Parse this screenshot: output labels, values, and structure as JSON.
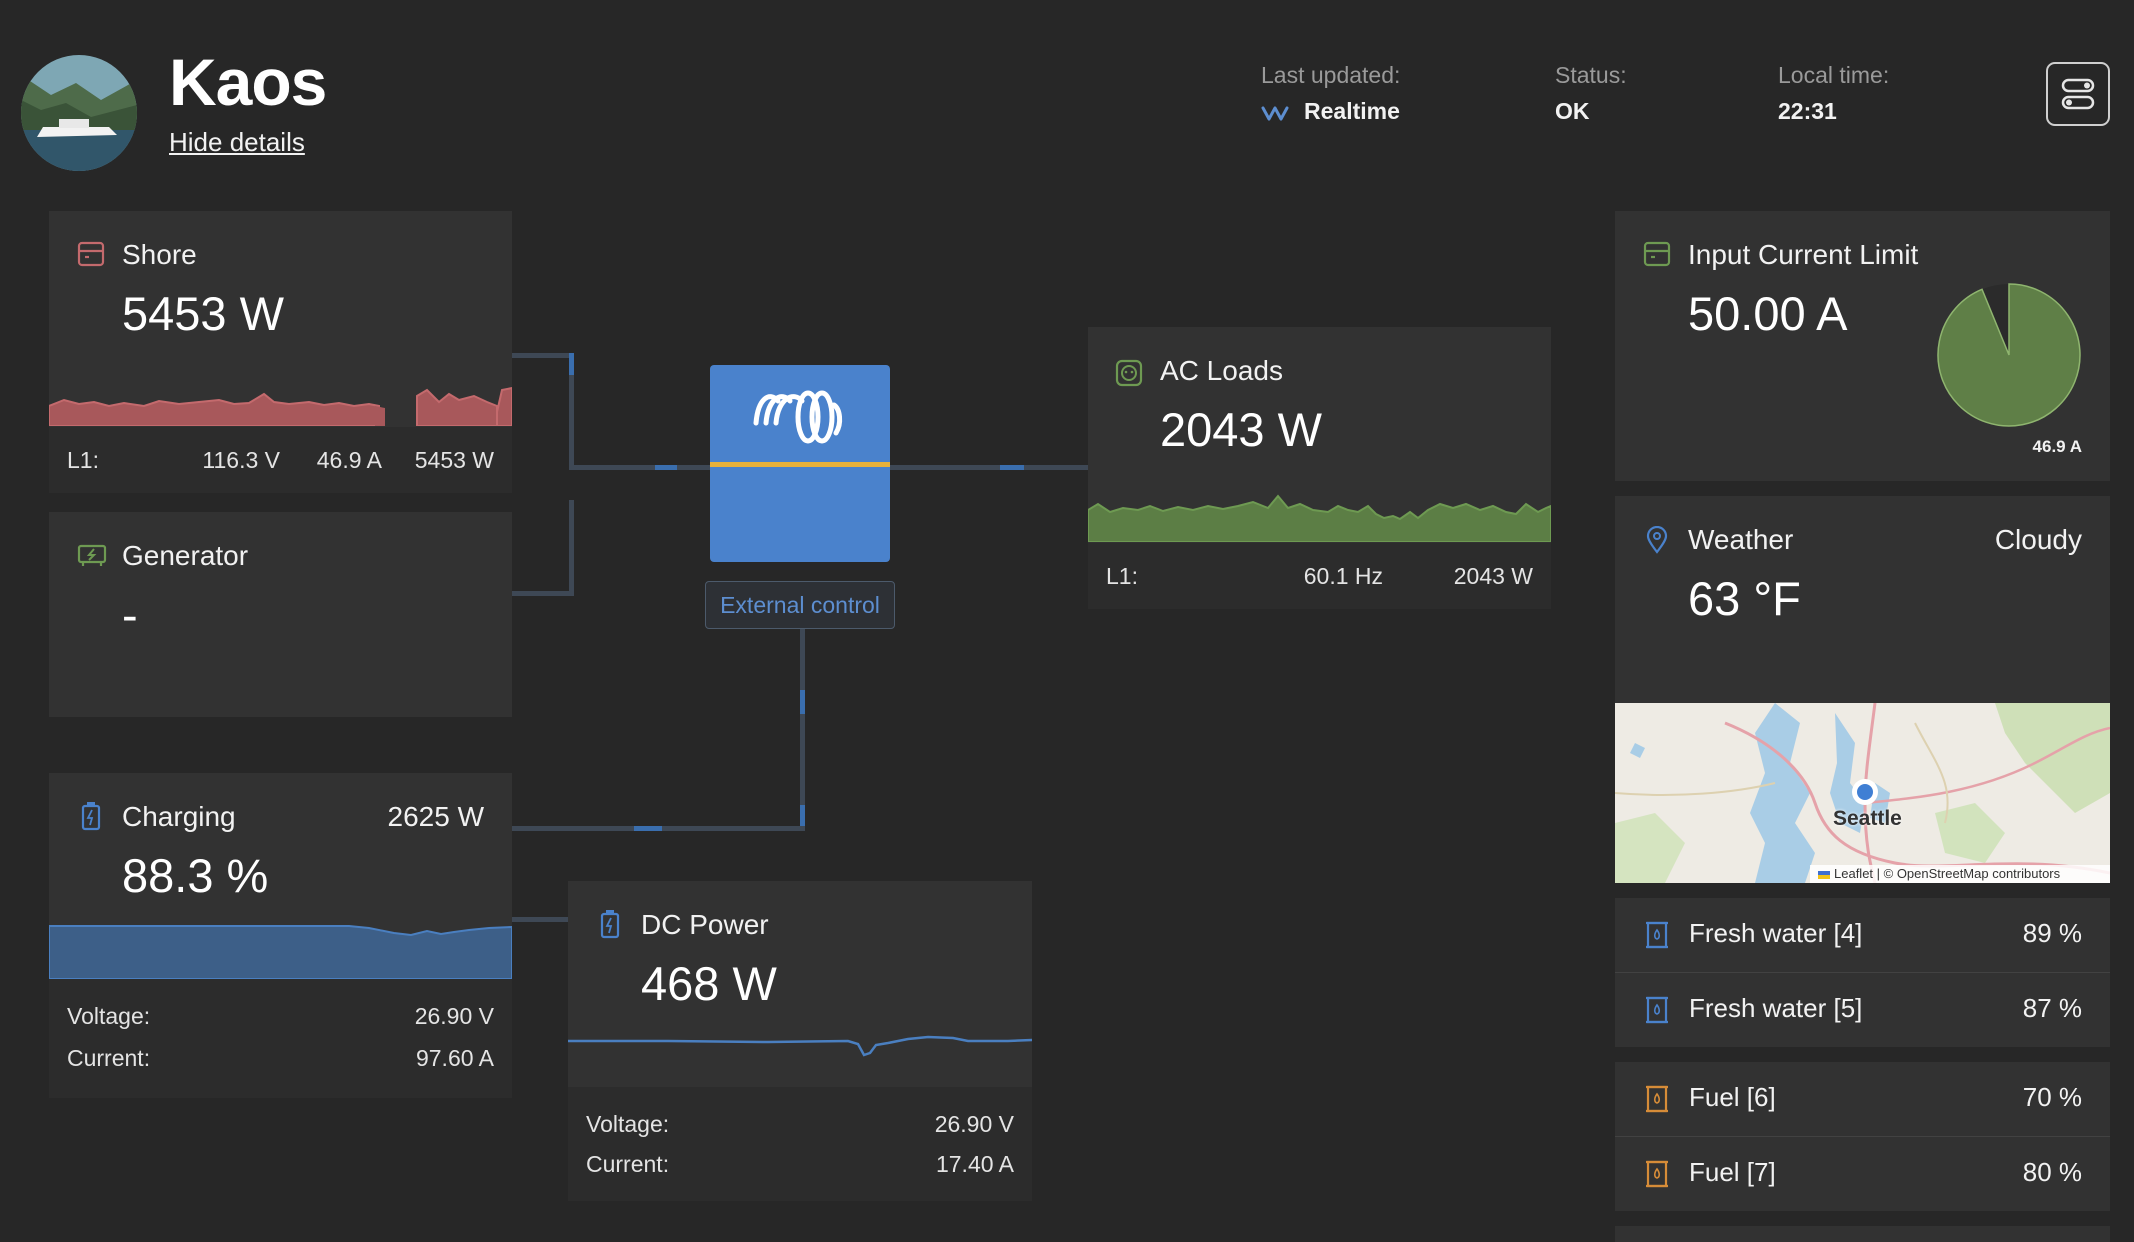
{
  "header": {
    "site_name": "Kaos",
    "hide_details": "Hide details",
    "last_updated_label": "Last updated:",
    "last_updated_value": "Realtime",
    "status_label": "Status:",
    "status_value": "OK",
    "local_time_label": "Local time:",
    "local_time_value": "22:31"
  },
  "shore": {
    "title": "Shore",
    "value": "5453 W",
    "line_label": "L1:",
    "voltage": "116.3 V",
    "current": "46.9 A",
    "power": "5453 W"
  },
  "generator": {
    "title": "Generator",
    "value": "-"
  },
  "inverter": {
    "external_control": "External control"
  },
  "ac_loads": {
    "title": "AC Loads",
    "value": "2043 W",
    "line_label": "L1:",
    "frequency": "60.1 Hz",
    "power": "2043 W"
  },
  "charging": {
    "title": "Charging",
    "power": "2625 W",
    "value": "88.3 %",
    "voltage_label": "Voltage:",
    "voltage": "26.90 V",
    "current_label": "Current:",
    "current": "97.60 A"
  },
  "dc_power": {
    "title": "DC Power",
    "value": "468 W",
    "voltage_label": "Voltage:",
    "voltage": "26.90 V",
    "current_label": "Current:",
    "current": "17.40 A"
  },
  "input_limit": {
    "title": "Input Current Limit",
    "value": "50.00 A",
    "pie_label": "46.9 A",
    "used_fraction": 0.938
  },
  "weather": {
    "title": "Weather",
    "condition": "Cloudy",
    "temperature": "63 °F",
    "map_city": "Seattle",
    "map_attribution": "Leaflet | © OpenStreetMap contributors"
  },
  "tanks": [
    {
      "label": "Fresh water [4]",
      "value": "89 %"
    },
    {
      "label": "Fresh water [5]",
      "value": "87 %"
    },
    {
      "label": "Fuel [6]",
      "value": "70 %"
    },
    {
      "label": "Fuel [7]",
      "value": "80 %"
    }
  ],
  "colors": {
    "shore": "#c46a6d",
    "ac_loads": "#6e9a52",
    "battery": "#4a6f9e",
    "dc": "#4a7fc0",
    "fuel": "#d68c38",
    "water": "#4a82cc",
    "inverter": "#4a82cc"
  }
}
